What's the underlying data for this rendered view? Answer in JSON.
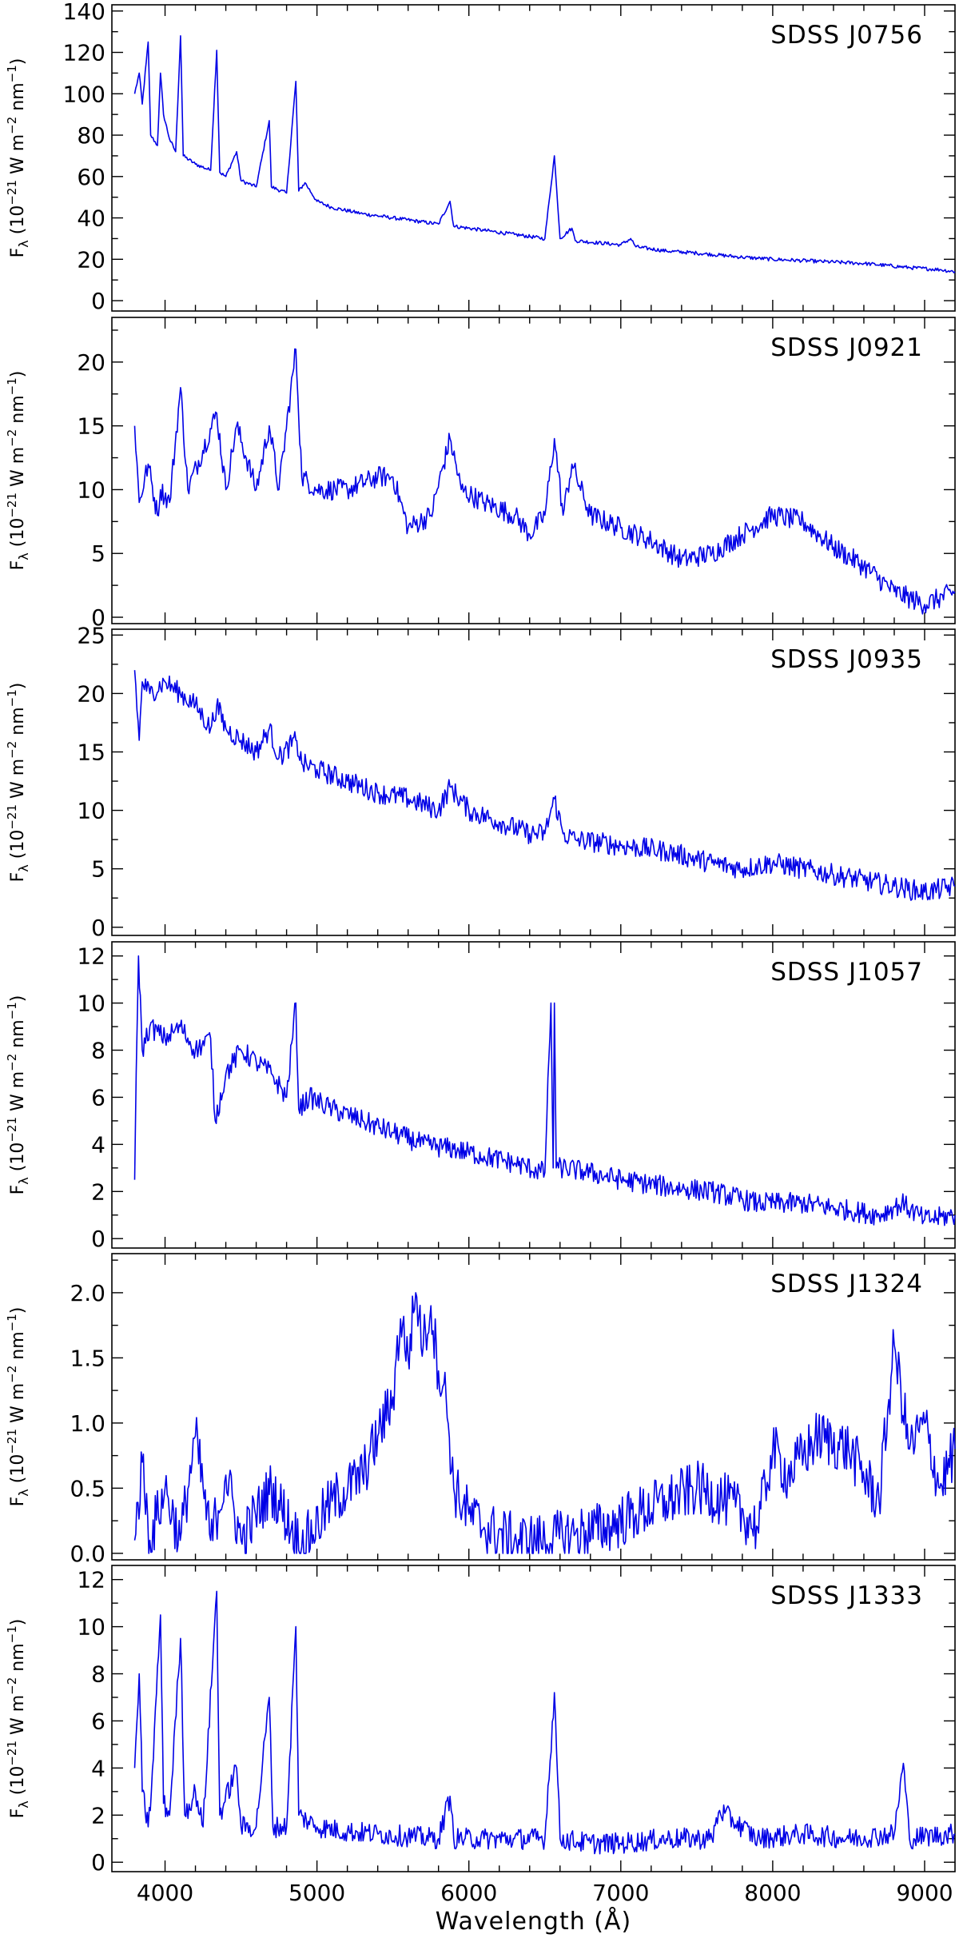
{
  "chart_data": {
    "type": "line",
    "xlabel": "Wavelength (Å)",
    "xlim": [
      3650,
      9200
    ],
    "x_ticks": [
      4000,
      5000,
      6000,
      7000,
      8000,
      9000
    ],
    "line_color": "#0000e6",
    "panels": [
      {
        "name": "SDSS J0756",
        "ylabel": "F_λ (10^-21 W m^-2 nm^-1)",
        "ylim": [
          -5,
          143
        ],
        "y_ticks": [
          0,
          20,
          40,
          60,
          80,
          100,
          120,
          140
        ],
        "spectrum": {
          "x": [
            3800,
            3830,
            3850,
            3889,
            3905,
            3950,
            3970,
            3990,
            4030,
            4070,
            4102,
            4120,
            4200,
            4300,
            4340,
            4360,
            4400,
            4471,
            4500,
            4600,
            4686,
            4700,
            4800,
            4861,
            4880,
            4921,
            5000,
            5100,
            5300,
            5500,
            5800,
            5876,
            5900,
            6100,
            6300,
            6500,
            6563,
            6600,
            6678,
            6700,
            7000,
            7065,
            7100,
            7300,
            7500,
            7800,
            8000,
            8300,
            8600,
            8900,
            9100,
            9200
          ],
          "y": [
            100,
            110,
            95,
            125,
            80,
            75,
            110,
            90,
            78,
            72,
            128,
            70,
            66,
            63,
            121,
            62,
            60,
            72,
            58,
            55,
            87,
            55,
            52,
            106,
            53,
            57,
            48,
            45,
            42,
            40,
            37,
            48,
            36,
            34,
            32,
            30,
            70,
            30,
            35,
            29,
            27,
            30,
            26,
            24,
            23,
            21,
            20,
            19,
            18,
            16,
            15,
            14
          ]
        }
      },
      {
        "name": "SDSS J0921",
        "ylabel": "F_λ (10^-21 W m^-2 nm^-1)",
        "ylim": [
          -0.5,
          23.5
        ],
        "y_ticks": [
          0,
          5,
          10,
          15,
          20
        ],
        "spectrum": {
          "x": [
            3800,
            3830,
            3889,
            3950,
            3970,
            4030,
            4102,
            4150,
            4340,
            4400,
            4471,
            4600,
            4686,
            4750,
            4861,
            4900,
            5000,
            5200,
            5400,
            5500,
            5600,
            5750,
            5876,
            5950,
            6100,
            6300,
            6400,
            6500,
            6563,
            6620,
            6678,
            6800,
            7000,
            7200,
            7400,
            7600,
            7800,
            8000,
            8200,
            8400,
            8600,
            8800,
            9000,
            9200
          ],
          "y": [
            15,
            9,
            12,
            8,
            10,
            9,
            18,
            10,
            16,
            10,
            15,
            10,
            15,
            10,
            21,
            11,
            10,
            10,
            11,
            11,
            7,
            8,
            14,
            10,
            9,
            8,
            6.5,
            8,
            14,
            8,
            12,
            8,
            7,
            6,
            4.5,
            5,
            6.5,
            8,
            7.5,
            5.5,
            4,
            2,
            1,
            2
          ]
        }
      },
      {
        "name": "SDSS J0935",
        "ylabel": "F_λ (10^-21 W m^-2 nm^-1)",
        "ylim": [
          -0.7,
          25.5
        ],
        "y_ticks": [
          0,
          5,
          10,
          15,
          20,
          25
        ],
        "spectrum": {
          "x": [
            3800,
            3830,
            3850,
            3900,
            4000,
            4100,
            4200,
            4300,
            4340,
            4400,
            4500,
            4600,
            4686,
            4750,
            4861,
            4900,
            5000,
            5200,
            5400,
            5600,
            5800,
            5876,
            6000,
            6200,
            6400,
            6500,
            6563,
            6620,
            6700,
            7000,
            7300,
            7600,
            7800,
            8000,
            8200,
            8400,
            8600,
            8800,
            9000,
            9200
          ],
          "y": [
            22,
            16,
            21,
            20,
            21,
            20,
            19,
            17,
            19,
            17,
            16,
            15,
            17,
            14.5,
            16,
            14,
            13.5,
            12.5,
            11.5,
            11,
            10,
            12,
            10,
            9,
            8,
            8,
            11,
            8,
            7.5,
            7,
            6.5,
            5.5,
            5,
            5.5,
            5,
            4.5,
            4,
            3.5,
            3,
            3.5
          ]
        }
      },
      {
        "name": "SDSS J1057",
        "ylabel": "F_λ (10^-21 W m^-2 nm^-1)",
        "ylim": [
          -0.4,
          12.6
        ],
        "y_ticks": [
          0,
          2,
          4,
          6,
          8,
          10,
          12
        ],
        "spectrum": {
          "x": [
            3800,
            3810,
            3825,
            3850,
            3900,
            4000,
            4100,
            4200,
            4300,
            4330,
            4400,
            4500,
            4600,
            4700,
            4800,
            4861,
            4880,
            4950,
            5100,
            5300,
            5500,
            5700,
            5900,
            6100,
            6300,
            6500,
            6540,
            6555,
            6563,
            6575,
            6590,
            6620,
            6800,
            7000,
            7300,
            7600,
            7900,
            8200,
            8500,
            8700,
            8850,
            9000,
            9200
          ],
          "y": [
            2.5,
            7,
            12,
            8,
            9,
            8.5,
            9,
            8,
            8.5,
            5,
            7,
            8,
            7.5,
            7,
            6,
            10,
            5.5,
            6,
            5.5,
            5,
            4.5,
            4,
            3.8,
            3.5,
            3.2,
            2.8,
            10,
            3,
            10,
            3,
            3,
            3,
            2.8,
            2.5,
            2.2,
            2,
            1.5,
            1.5,
            1.2,
            1,
            1.5,
            0.8,
            1
          ]
        }
      },
      {
        "name": "SDSS J1324",
        "ylabel": "F_λ (10^-21 W m^-2 nm^-1)",
        "ylim": [
          -0.05,
          2.3
        ],
        "y_ticks": [
          0.0,
          0.5,
          1.0,
          1.5,
          2.0
        ],
        "spectrum": {
          "x": [
            3800,
            3850,
            3900,
            4000,
            4100,
            4200,
            4300,
            4400,
            4500,
            4700,
            4900,
            5100,
            5300,
            5400,
            5500,
            5550,
            5600,
            5650,
            5700,
            5750,
            5800,
            5850,
            5900,
            6000,
            6100,
            6300,
            6500,
            6700,
            6900,
            7100,
            7300,
            7500,
            7700,
            7900,
            8000,
            8100,
            8300,
            8500,
            8700,
            8800,
            8900,
            9000,
            9100,
            9200
          ],
          "y": [
            0.1,
            0.7,
            0.1,
            0.5,
            0.1,
            0.9,
            0.1,
            0.6,
            0.1,
            0.5,
            0.05,
            0.4,
            0.6,
            0.9,
            1.2,
            1.8,
            1.5,
            2.0,
            1.6,
            1.9,
            1.4,
            1.2,
            0.5,
            0.3,
            0.2,
            0.1,
            0.1,
            0.15,
            0.2,
            0.3,
            0.4,
            0.5,
            0.4,
            0.2,
            0.8,
            0.6,
            0.9,
            0.8,
            0.4,
            1.6,
            0.8,
            1.0,
            0.5,
            0.8
          ]
        }
      },
      {
        "name": "SDSS J1333",
        "ylabel": "F_λ (10^-21 W m^-2 nm^-1)",
        "ylim": [
          -0.4,
          12.6
        ],
        "y_ticks": [
          0,
          2,
          4,
          6,
          8,
          10,
          12
        ],
        "spectrum": {
          "x": [
            3800,
            3830,
            3850,
            3889,
            3910,
            3970,
            3990,
            4030,
            4102,
            4130,
            4200,
            4250,
            4340,
            4360,
            4471,
            4500,
            4600,
            4686,
            4710,
            4800,
            4861,
            4880,
            5000,
            5200,
            5400,
            5600,
            5800,
            5876,
            5900,
            6100,
            6300,
            6500,
            6563,
            6600,
            6800,
            7000,
            7300,
            7600,
            7650,
            7900,
            8200,
            8500,
            8800,
            8860,
            8900,
            9000,
            9200
          ],
          "y": [
            4,
            8,
            3,
            1.5,
            3,
            10.5,
            2.5,
            2,
            9.5,
            2,
            3,
            1.5,
            11.5,
            2,
            4,
            1.5,
            1.5,
            7,
            1.5,
            1.5,
            10,
            2,
            1.5,
            1.3,
            1.2,
            1.1,
            1,
            2.8,
            1,
            1,
            1,
            1,
            7.2,
            1,
            0.8,
            0.8,
            1,
            1,
            2.2,
            1,
            1.2,
            1,
            1.2,
            4.2,
            1,
            1.1,
            1.2
          ]
        }
      }
    ]
  }
}
